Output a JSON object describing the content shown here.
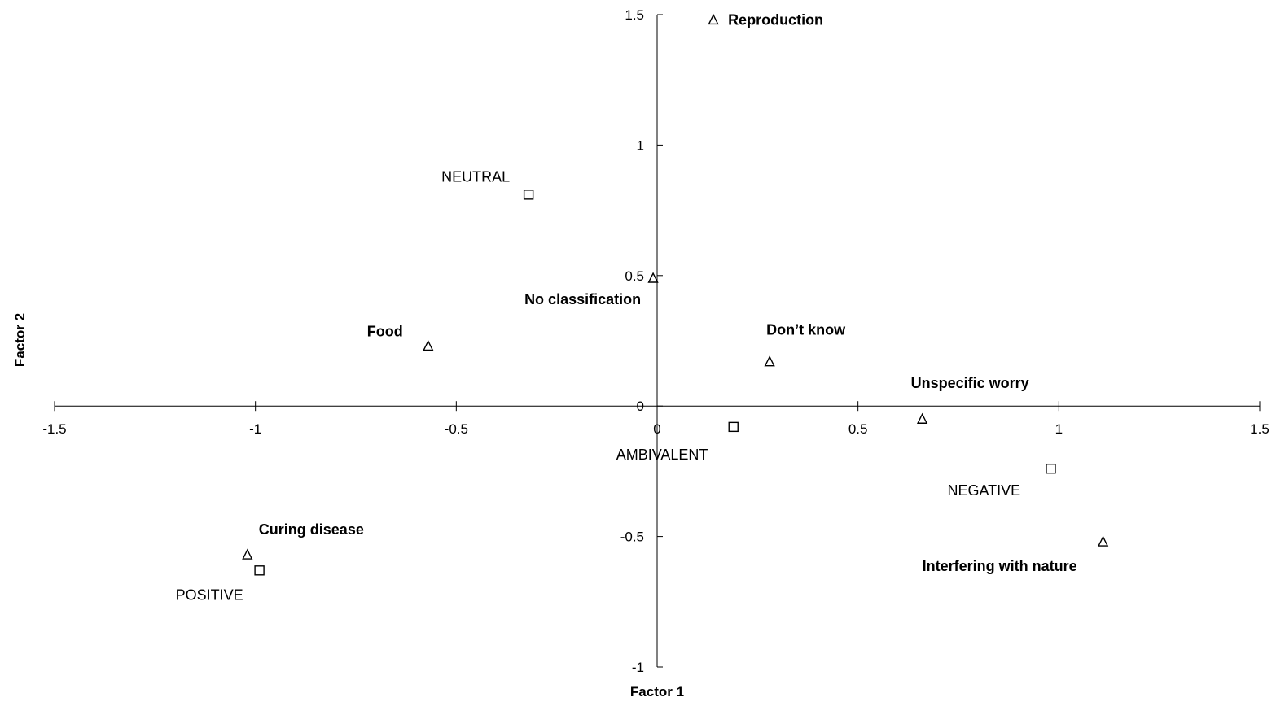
{
  "chart_data": {
    "type": "scatter",
    "title": "",
    "xlabel": "Factor 1",
    "ylabel": "Factor 2",
    "xlim": [
      -1.5,
      1.5
    ],
    "ylim": [
      -1,
      1.5
    ],
    "x_ticks": [
      -1.5,
      -1,
      -0.5,
      0,
      0.5,
      1,
      1.5
    ],
    "y_ticks": [
      -1,
      -0.5,
      0,
      0.5,
      1,
      1.5
    ],
    "x_tick_labels": [
      "-1.5",
      "-1",
      "-0.5",
      "0",
      "0.5",
      "1",
      "1.5"
    ],
    "y_tick_labels": [
      "-1",
      "-0.5",
      "0",
      "0.5",
      "1",
      "1.5"
    ],
    "grid": false,
    "legend": "none",
    "series": [
      {
        "marker": "triangle",
        "label_style": "bold",
        "points": [
          {
            "label": "Reproduction",
            "x": 0.14,
            "y": 1.48
          },
          {
            "label": "No classification",
            "x": -0.01,
            "y": 0.49
          },
          {
            "label": "Food",
            "x": -0.57,
            "y": 0.23
          },
          {
            "label": "Don’t know",
            "x": 0.28,
            "y": 0.17
          },
          {
            "label": "Unspecific worry",
            "x": 0.66,
            "y": -0.05
          },
          {
            "label": "Interfering with nature",
            "x": 1.11,
            "y": -0.52
          },
          {
            "label": "Curing disease",
            "x": -1.02,
            "y": -0.57
          }
        ]
      },
      {
        "marker": "square",
        "label_style": "plain",
        "points": [
          {
            "label": "NEUTRAL",
            "x": -0.32,
            "y": 0.81
          },
          {
            "label": "AMBIVALENT",
            "x": 0.19,
            "y": -0.08
          },
          {
            "label": "NEGATIVE",
            "x": 0.98,
            "y": -0.24
          },
          {
            "label": "POSITIVE",
            "x": -0.99,
            "y": -0.63
          }
        ]
      }
    ]
  }
}
